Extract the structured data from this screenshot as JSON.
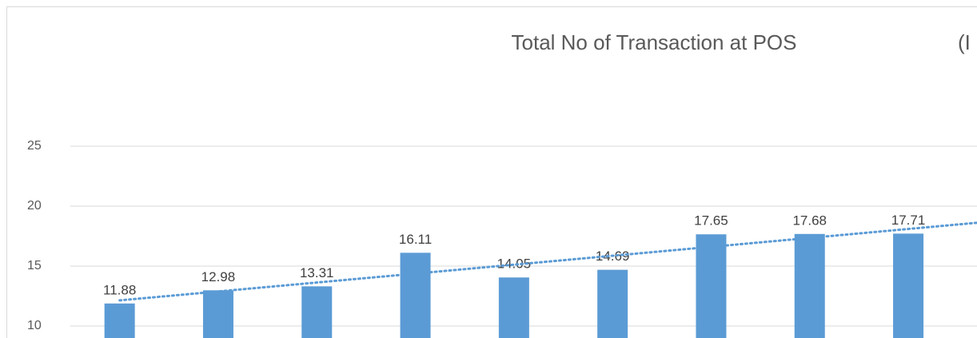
{
  "chart_data": {
    "type": "bar",
    "title": "Total No of Transaction at POS",
    "subtitle": "(I",
    "categories": [
      null,
      null,
      null,
      null,
      null,
      null,
      null,
      null,
      null
    ],
    "values": [
      11.88,
      12.98,
      13.31,
      16.11,
      14.05,
      14.69,
      17.65,
      17.68,
      17.71
    ],
    "color": "#5b9bd5",
    "trendline": "linear",
    "trendline_color": "#5b9bd5",
    "ylim": [
      9,
      30
    ],
    "yticks": [
      10,
      15,
      20,
      25
    ],
    "grid": true
  }
}
